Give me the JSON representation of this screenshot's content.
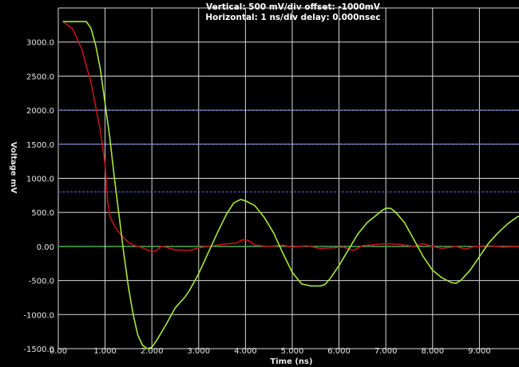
{
  "header": {
    "vertical": "Vertical: 500 mV/div  offset: -1000mV",
    "horizontal": "Horizontal: 1 ns/div  delay: 0.000nsec"
  },
  "colors": {
    "background": "#000000",
    "grid": "#d9d9d9",
    "reference": "#5b63ff",
    "zero_line": "#1fb21f",
    "series_red": "#c0141c",
    "series_green": "#a8e83a"
  },
  "chart_data": {
    "type": "line",
    "xlabel": "Time  (ns)",
    "ylabel": "Voltage mV",
    "xlim": [
      0,
      10
    ],
    "ylim": [
      -1500,
      3500
    ],
    "grid": true,
    "x_ticks": [
      "0.00",
      "1.000",
      "2.000",
      "3.000",
      "4.000",
      "5.000",
      "6.000",
      "7.000",
      "8.000",
      "9.000"
    ],
    "y_ticks": [
      "3000.0",
      "2500.0",
      "2000.0",
      "1500.0",
      "1000.0",
      "500.0",
      "0.00",
      "-500.0",
      "-1000.0",
      "-1500.0"
    ],
    "reference_lines": [
      2000,
      1500,
      800
    ],
    "zero_line": 0,
    "series": [
      {
        "color": "#c0141c",
        "points": [
          [
            0.1,
            3300
          ],
          [
            0.3,
            3200
          ],
          [
            0.5,
            2900
          ],
          [
            0.7,
            2400
          ],
          [
            0.9,
            1700
          ],
          [
            1.0,
            1200
          ],
          [
            1.05,
            700
          ],
          [
            1.1,
            450
          ],
          [
            1.2,
            300
          ],
          [
            1.3,
            200
          ],
          [
            1.4,
            130
          ],
          [
            1.5,
            60
          ],
          [
            1.6,
            20
          ],
          [
            1.8,
            -20
          ],
          [
            2.0,
            -80
          ],
          [
            2.1,
            -60
          ],
          [
            2.2,
            0
          ],
          [
            2.3,
            -10
          ],
          [
            2.5,
            -50
          ],
          [
            2.8,
            -60
          ],
          [
            3.0,
            -20
          ],
          [
            3.2,
            0
          ],
          [
            3.5,
            30
          ],
          [
            3.8,
            50
          ],
          [
            3.95,
            100
          ],
          [
            4.05,
            90
          ],
          [
            4.2,
            20
          ],
          [
            4.5,
            0
          ],
          [
            4.8,
            20
          ],
          [
            5.0,
            -10
          ],
          [
            5.3,
            10
          ],
          [
            5.6,
            -30
          ],
          [
            5.9,
            -20
          ],
          [
            6.1,
            -10
          ],
          [
            6.3,
            -60
          ],
          [
            6.5,
            10
          ],
          [
            6.8,
            30
          ],
          [
            7.0,
            40
          ],
          [
            7.3,
            30
          ],
          [
            7.6,
            0
          ],
          [
            7.8,
            40
          ],
          [
            8.0,
            0
          ],
          [
            8.2,
            -30
          ],
          [
            8.5,
            0
          ],
          [
            8.7,
            -40
          ],
          [
            8.9,
            0
          ],
          [
            9.2,
            10
          ],
          [
            9.5,
            -10
          ],
          [
            9.8,
            0
          ],
          [
            10.0,
            0
          ]
        ]
      },
      {
        "color": "#a8e83a",
        "points": [
          [
            0.1,
            3300
          ],
          [
            0.5,
            3300
          ],
          [
            0.6,
            3300
          ],
          [
            0.7,
            3200
          ],
          [
            0.8,
            2950
          ],
          [
            0.9,
            2600
          ],
          [
            1.0,
            2100
          ],
          [
            1.1,
            1600
          ],
          [
            1.2,
            1000
          ],
          [
            1.3,
            450
          ],
          [
            1.4,
            -100
          ],
          [
            1.5,
            -600
          ],
          [
            1.6,
            -1000
          ],
          [
            1.7,
            -1300
          ],
          [
            1.8,
            -1450
          ],
          [
            1.9,
            -1500
          ],
          [
            2.0,
            -1480
          ],
          [
            2.1,
            -1380
          ],
          [
            2.3,
            -1150
          ],
          [
            2.5,
            -900
          ],
          [
            2.7,
            -750
          ],
          [
            2.8,
            -650
          ],
          [
            3.0,
            -400
          ],
          [
            3.2,
            -100
          ],
          [
            3.4,
            200
          ],
          [
            3.6,
            480
          ],
          [
            3.75,
            640
          ],
          [
            3.9,
            690
          ],
          [
            4.0,
            670
          ],
          [
            4.2,
            600
          ],
          [
            4.4,
            430
          ],
          [
            4.6,
            200
          ],
          [
            4.8,
            -100
          ],
          [
            5.0,
            -380
          ],
          [
            5.2,
            -550
          ],
          [
            5.4,
            -580
          ],
          [
            5.6,
            -580
          ],
          [
            5.7,
            -560
          ],
          [
            5.8,
            -480
          ],
          [
            6.0,
            -280
          ],
          [
            6.2,
            -50
          ],
          [
            6.4,
            180
          ],
          [
            6.6,
            350
          ],
          [
            6.8,
            460
          ],
          [
            6.9,
            520
          ],
          [
            7.0,
            560
          ],
          [
            7.1,
            560
          ],
          [
            7.2,
            510
          ],
          [
            7.4,
            350
          ],
          [
            7.6,
            100
          ],
          [
            7.8,
            -150
          ],
          [
            8.0,
            -350
          ],
          [
            8.2,
            -460
          ],
          [
            8.4,
            -530
          ],
          [
            8.5,
            -540
          ],
          [
            8.6,
            -500
          ],
          [
            8.8,
            -350
          ],
          [
            9.0,
            -150
          ],
          [
            9.2,
            50
          ],
          [
            9.4,
            200
          ],
          [
            9.6,
            330
          ],
          [
            9.8,
            430
          ],
          [
            9.95,
            480
          ]
        ]
      }
    ]
  }
}
